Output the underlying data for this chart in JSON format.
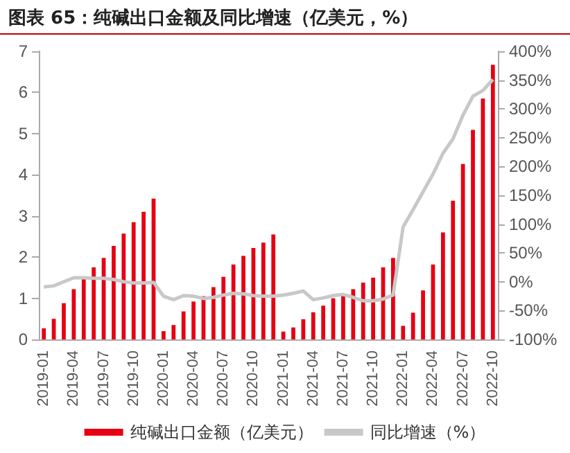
{
  "chart_data": {
    "type": "bar",
    "title": "图表 65：纯碱出口金额及同比增速（亿美元，%）",
    "categories": [
      "2019-01",
      null,
      null,
      "2019-04",
      null,
      null,
      "2019-07",
      null,
      null,
      "2019-10",
      null,
      null,
      "2020-01",
      null,
      null,
      "2020-04",
      null,
      null,
      "2020-07",
      null,
      null,
      "2020-10",
      null,
      null,
      "2021-01",
      null,
      null,
      "2021-04",
      null,
      null,
      "2021-07",
      null,
      null,
      "2021-10",
      null,
      null,
      "2022-01",
      null,
      null,
      "2022-04",
      null,
      null,
      "2022-07",
      null,
      null,
      "2022-10"
    ],
    "series": [
      {
        "name": "纯碱出口金额（亿美元）",
        "color": "#e60012",
        "values": [
          0.27,
          0.5,
          0.88,
          1.22,
          1.48,
          1.75,
          1.98,
          2.27,
          2.57,
          2.85,
          3.1,
          3.42,
          0.2,
          0.35,
          0.68,
          0.92,
          1.05,
          1.27,
          1.52,
          1.82,
          2.03,
          2.22,
          2.35,
          2.55,
          0.19,
          0.29,
          0.49,
          0.66,
          0.82,
          1.0,
          1.1,
          1.22,
          1.38,
          1.5,
          1.75,
          1.98,
          0.33,
          0.65,
          1.19,
          1.82,
          2.6,
          3.37,
          4.26,
          5.09,
          5.85,
          6.67
        ]
      },
      {
        "name": "同比增速（%）",
        "type": "line",
        "axis": "y2",
        "color": "#c8c8c8",
        "values": [
          -9,
          -7,
          0,
          7,
          7,
          6,
          6,
          4,
          0,
          -2,
          -2,
          -1,
          -25,
          -31,
          -24,
          -25,
          -29,
          -27,
          -23,
          -20,
          -21,
          -24,
          -25,
          -25,
          -23,
          -20,
          -16,
          -31,
          -28,
          -24,
          -22,
          -27,
          -33,
          -33,
          -30,
          -23,
          95,
          125,
          156,
          187,
          223,
          248,
          289,
          322,
          332,
          351
        ]
      }
    ],
    "ylim": [
      0,
      7
    ],
    "yticks": [
      0,
      1,
      2,
      3,
      4,
      5,
      6,
      7
    ],
    "y2lim": [
      -100,
      400
    ],
    "y2ticks": [
      {
        "value": -100,
        "label": "-100%"
      },
      {
        "value": -50,
        "label": "-50%"
      },
      {
        "value": 0,
        "label": "0%"
      },
      {
        "value": 50,
        "label": "50%"
      },
      {
        "value": 100,
        "label": "100%"
      },
      {
        "value": 150,
        "label": "150%"
      },
      {
        "value": 200,
        "label": "200%"
      },
      {
        "value": 250,
        "label": "250%"
      },
      {
        "value": 300,
        "label": "300%"
      },
      {
        "value": 350,
        "label": "350%"
      },
      {
        "value": 400,
        "label": "400%"
      }
    ],
    "grid": false,
    "legend": "bottom",
    "marker": "none",
    "line_style": "solid"
  }
}
